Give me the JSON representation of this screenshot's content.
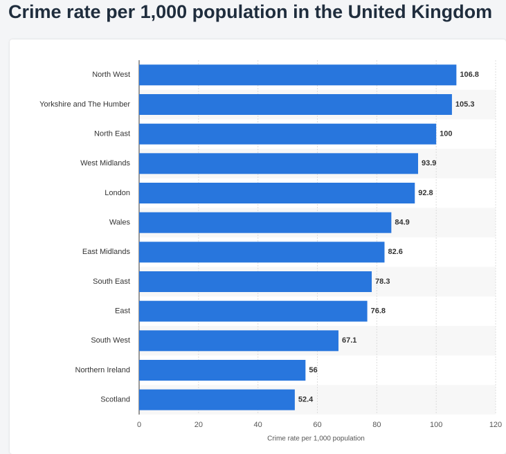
{
  "chart_data": {
    "type": "bar",
    "orientation": "horizontal",
    "title": "Crime rate per 1,000 population in the United Kingdom",
    "x_label": "Crime rate per 1,000 population",
    "categories": [
      "North West",
      "Yorkshire and The Humber",
      "North East",
      "West Midlands",
      "London",
      "Wales",
      "East Midlands",
      "South East",
      "East",
      "South West",
      "Northern Ireland",
      "Scotland"
    ],
    "values": [
      106.8,
      105.3,
      100,
      93.9,
      92.8,
      84.9,
      82.6,
      78.3,
      76.8,
      67.1,
      56,
      52.4
    ],
    "color": "#2876dd",
    "xlim": [
      0,
      120
    ],
    "xticks": [
      0,
      20,
      40,
      60,
      80,
      100,
      120
    ],
    "grid": true
  }
}
